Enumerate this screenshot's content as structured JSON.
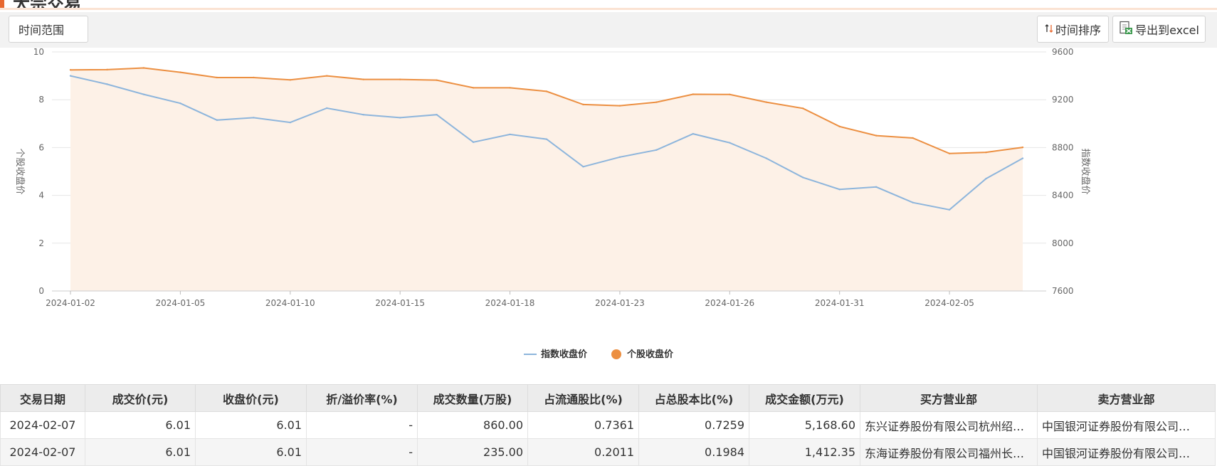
{
  "header": {
    "title": "大宗交易"
  },
  "toolbar": {
    "range_label": "时间范围",
    "sort_label": "时间排序",
    "export_label": "导出到excel",
    "sort_icon": "sort-arrows-icon",
    "export_icon": "excel-icon"
  },
  "colors": {
    "index_line": "#8db5dc",
    "stock_line": "#ec8f41",
    "stock_area": "#fdf1e7",
    "accent": "#e8682f"
  },
  "chart_data": {
    "type": "line",
    "x": [
      "2024-01-02",
      "2024-01-03",
      "2024-01-04",
      "2024-01-05",
      "2024-01-08",
      "2024-01-09",
      "2024-01-10",
      "2024-01-11",
      "2024-01-12",
      "2024-01-15",
      "2024-01-16",
      "2024-01-17",
      "2024-01-18",
      "2024-01-19",
      "2024-01-22",
      "2024-01-23",
      "2024-01-24",
      "2024-01-25",
      "2024-01-26",
      "2024-01-29",
      "2024-01-30",
      "2024-01-31",
      "2024-02-01",
      "2024-02-02",
      "2024-02-05",
      "2024-02-06",
      "2024-02-07"
    ],
    "x_tick_labels": [
      "2024-01-02",
      "2024-01-05",
      "2024-01-10",
      "2024-01-15",
      "2024-01-18",
      "2024-01-23",
      "2024-01-26",
      "2024-01-31",
      "2024-02-05"
    ],
    "series": [
      {
        "name": "指数收盘价",
        "axis": "right",
        "values": [
          9400,
          9330,
          9245,
          9170,
          9030,
          9050,
          9010,
          9130,
          9075,
          9050,
          9075,
          8845,
          8910,
          8870,
          8640,
          8720,
          8780,
          8915,
          8840,
          8710,
          8550,
          8450,
          8470,
          8340,
          8280,
          8540,
          8710
        ]
      },
      {
        "name": "个股收盘价",
        "axis": "left",
        "area": true,
        "values": [
          9.25,
          9.26,
          9.33,
          9.15,
          8.93,
          8.93,
          8.83,
          9.0,
          8.85,
          8.85,
          8.82,
          8.5,
          8.5,
          8.35,
          7.8,
          7.75,
          7.9,
          8.23,
          8.22,
          7.9,
          7.64,
          6.88,
          6.5,
          6.4,
          5.75,
          5.8,
          6.01
        ]
      }
    ],
    "ylabel_left": "个股收盘价",
    "ylabel_right": "指数收盘价",
    "ylim_left": [
      0,
      10
    ],
    "ylim_right": [
      7600,
      9600
    ],
    "yticks_left": [
      0,
      2,
      4,
      6,
      8,
      10
    ],
    "yticks_right": [
      7600,
      8000,
      8400,
      8800,
      9200,
      9600
    ],
    "grid": true,
    "legend": "bottom-center"
  },
  "table": {
    "headers": [
      "交易日期",
      "成交价(元)",
      "收盘价(元)",
      "折/溢价率(%)",
      "成交数量(万股)",
      "占流通股比(%)",
      "占总股本比(%)",
      "成交金额(万元)",
      "买方营业部",
      "卖方营业部"
    ],
    "rows": [
      [
        "2024-02-07",
        "6.01",
        "6.01",
        "-",
        "860.00",
        "0.7361",
        "0.7259",
        "5,168.60",
        "东兴证券股份有限公司杭州绍…",
        "中国银河证券股份有限公司…"
      ],
      [
        "2024-02-07",
        "6.01",
        "6.01",
        "-",
        "235.00",
        "0.2011",
        "0.1984",
        "1,412.35",
        "东海证券股份有限公司福州长…",
        "中国银河证券股份有限公司…"
      ]
    ]
  }
}
